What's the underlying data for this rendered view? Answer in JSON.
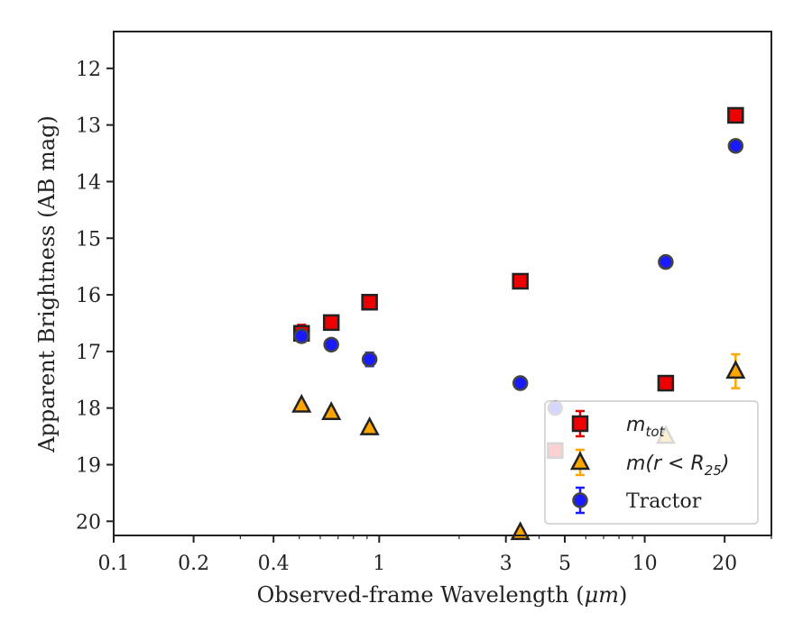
{
  "chart_data": {
    "type": "scatter",
    "xlabel_prefix": "Observed-frame Wavelength (",
    "xlabel_unit": "μm",
    "xlabel_suffix": ")",
    "ylabel": "Apparent Brightness (AB mag)",
    "xscale": "log",
    "xlim": [
      0.1,
      30
    ],
    "ylim": [
      20.25,
      11.35
    ],
    "y_inverted": true,
    "x_ticks": [
      0.1,
      0.2,
      0.4,
      1,
      3,
      5,
      10,
      20
    ],
    "x_tick_labels": [
      "0.1",
      "0.2",
      "0.4",
      "1",
      "3",
      "5",
      "10",
      "20"
    ],
    "y_ticks": [
      12,
      13,
      14,
      15,
      16,
      17,
      18,
      19,
      20
    ],
    "y_tick_labels": [
      "12",
      "13",
      "14",
      "15",
      "16",
      "17",
      "18",
      "19",
      "20"
    ],
    "grid": false,
    "legend_position": "lower-right",
    "series": [
      {
        "key": "mtot",
        "name_main": "m",
        "name_sub": "tot",
        "marker": "square",
        "color": "#ee0000",
        "ecolor": "#dd0000",
        "points": [
          {
            "x": 0.51,
            "y": 16.68,
            "err": 0.15
          },
          {
            "x": 0.66,
            "y": 16.49,
            "err": 0.05
          },
          {
            "x": 0.92,
            "y": 16.13,
            "err": 0.05
          },
          {
            "x": 3.4,
            "y": 15.76,
            "err": 0.05
          },
          {
            "x": 4.6,
            "y": 18.75,
            "err": 0.05
          },
          {
            "x": 12.0,
            "y": 17.56,
            "err": 0.05
          },
          {
            "x": 22.0,
            "y": 12.83,
            "err": 0.05
          }
        ]
      },
      {
        "key": "mr25",
        "name_main": "m(r < R",
        "name_sub": "25",
        "name_tail": ")",
        "marker": "triangle",
        "color": "#ffa500",
        "ecolor": "#ffa500",
        "points": [
          {
            "x": 0.51,
            "y": 17.95,
            "err": 0.05
          },
          {
            "x": 0.66,
            "y": 18.08,
            "err": 0.05
          },
          {
            "x": 0.92,
            "y": 18.35,
            "err": 0.05
          },
          {
            "x": 3.4,
            "y": 20.2,
            "err": 0.05
          },
          {
            "x": 12.0,
            "y": 18.5,
            "err": 0.05
          },
          {
            "x": 22.0,
            "y": 17.35,
            "err": 0.3
          }
        ]
      },
      {
        "key": "tractor",
        "name": "Tractor",
        "marker": "circle",
        "color": "#1a1aff",
        "ecolor": "#1a1aff",
        "points": [
          {
            "x": 0.51,
            "y": 16.73,
            "err": 0.05
          },
          {
            "x": 0.66,
            "y": 16.88,
            "err": 0.05
          },
          {
            "x": 0.92,
            "y": 17.14,
            "err": 0.12
          },
          {
            "x": 3.4,
            "y": 17.56,
            "err": 0.05
          },
          {
            "x": 4.6,
            "y": 18.0,
            "err": 0.1
          },
          {
            "x": 12.0,
            "y": 15.42,
            "err": 0.05
          },
          {
            "x": 22.0,
            "y": 13.37,
            "err": 0.05
          }
        ]
      }
    ]
  }
}
